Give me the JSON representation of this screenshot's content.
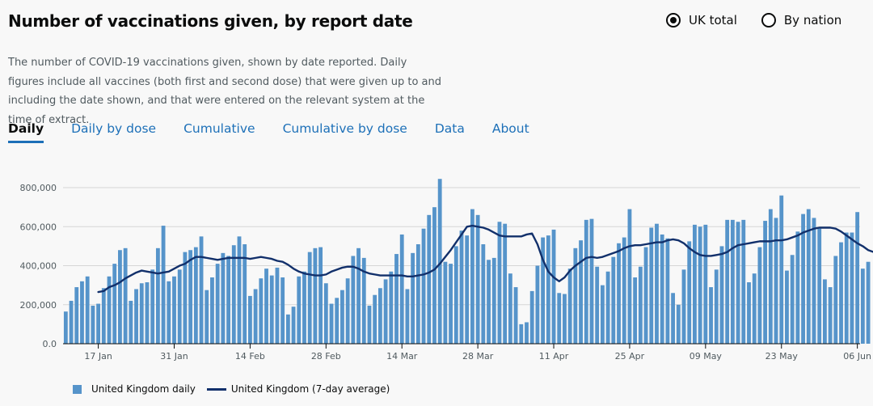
{
  "title": "Number of vaccinations given, by report date",
  "radios": [
    {
      "label": "UK total",
      "checked": true
    },
    {
      "label": "By nation",
      "checked": false
    }
  ],
  "description": "The number of COVID-19 vaccinations given, shown by date reported. Daily figures include all vaccines (both first and second dose) that were given up to and including the date shown, and that were entered on the relevant system at the time of extract.",
  "tabs": [
    {
      "label": "Daily",
      "active": true
    },
    {
      "label": "Daily by dose",
      "active": false
    },
    {
      "label": "Cumulative",
      "active": false
    },
    {
      "label": "Cumulative by dose",
      "active": false
    },
    {
      "label": "Data",
      "active": false
    },
    {
      "label": "About",
      "active": false
    }
  ],
  "colors": {
    "bar": "#5694ca",
    "line": "#12306b",
    "tab_active": "#1d70b8"
  },
  "chart_data": {
    "type": "bar",
    "x_start": "2021-01-11",
    "x_end": "2021-06-07",
    "ylim": [
      0,
      850000
    ],
    "y_ticks": [
      {
        "value": 0,
        "label": "0.0"
      },
      {
        "value": 200000,
        "label": "200,000"
      },
      {
        "value": 400000,
        "label": "400,000"
      },
      {
        "value": 600000,
        "label": "600,000"
      },
      {
        "value": 800000,
        "label": "800,000"
      }
    ],
    "x_ticks": [
      {
        "date": "2021-01-17",
        "label": "17 Jan"
      },
      {
        "date": "2021-01-31",
        "label": "31 Jan"
      },
      {
        "date": "2021-02-14",
        "label": "14 Feb"
      },
      {
        "date": "2021-02-28",
        "label": "28 Feb"
      },
      {
        "date": "2021-03-14",
        "label": "14 Mar"
      },
      {
        "date": "2021-03-28",
        "label": "28 Mar"
      },
      {
        "date": "2021-04-11",
        "label": "11 Apr"
      },
      {
        "date": "2021-04-25",
        "label": "25 Apr"
      },
      {
        "date": "2021-05-09",
        "label": "09 May"
      },
      {
        "date": "2021-05-23",
        "label": "23 May"
      },
      {
        "date": "2021-06-06",
        "label": "06 Jun"
      }
    ],
    "series": [
      {
        "name": "United Kingdom daily",
        "type": "bar",
        "values": [
          165000,
          220000,
          290000,
          320000,
          345000,
          195000,
          205000,
          285000,
          345000,
          410000,
          480000,
          490000,
          220000,
          280000,
          310000,
          315000,
          380000,
          490000,
          605000,
          320000,
          345000,
          380000,
          470000,
          480000,
          495000,
          550000,
          275000,
          340000,
          410000,
          465000,
          450000,
          505000,
          550000,
          510000,
          245000,
          280000,
          335000,
          385000,
          350000,
          390000,
          340000,
          150000,
          190000,
          345000,
          370000,
          470000,
          490000,
          495000,
          310000,
          205000,
          235000,
          275000,
          335000,
          450000,
          490000,
          440000,
          195000,
          250000,
          285000,
          330000,
          370000,
          460000,
          560000,
          280000,
          465000,
          510000,
          590000,
          660000,
          700000,
          845000,
          420000,
          410000,
          500000,
          580000,
          555000,
          690000,
          660000,
          510000,
          430000,
          440000,
          625000,
          615000,
          360000,
          290000,
          100000,
          110000,
          270000,
          400000,
          545000,
          555000,
          585000,
          260000,
          255000,
          385000,
          490000,
          530000,
          635000,
          640000,
          395000,
          300000,
          370000,
          445000,
          515000,
          545000,
          690000,
          340000,
          395000,
          495000,
          595000,
          615000,
          560000,
          540000,
          260000,
          200000,
          380000,
          525000,
          610000,
          600000,
          610000,
          290000,
          380000,
          500000,
          635000,
          635000,
          625000,
          635000,
          315000,
          360000,
          495000,
          630000,
          690000,
          645000,
          760000,
          375000,
          455000,
          575000,
          665000,
          690000,
          645000,
          590000,
          330000,
          290000,
          450000,
          520000,
          570000,
          570000,
          675000,
          385000,
          420000
        ]
      },
      {
        "name": "United Kingdom (7-day average)",
        "type": "line",
        "start_index": 6,
        "values": [
          265000,
          270000,
          290000,
          300000,
          315000,
          335000,
          350000,
          365000,
          375000,
          370000,
          365000,
          360000,
          365000,
          370000,
          385000,
          400000,
          410000,
          430000,
          445000,
          445000,
          440000,
          435000,
          430000,
          435000,
          440000,
          440000,
          440000,
          440000,
          435000,
          440000,
          445000,
          440000,
          435000,
          425000,
          420000,
          405000,
          385000,
          370000,
          360000,
          355000,
          350000,
          350000,
          355000,
          370000,
          380000,
          390000,
          395000,
          395000,
          385000,
          370000,
          360000,
          355000,
          350000,
          350000,
          350000,
          350000,
          350000,
          345000,
          345000,
          350000,
          355000,
          365000,
          380000,
          410000,
          445000,
          480000,
          520000,
          560000,
          600000,
          605000,
          600000,
          595000,
          585000,
          570000,
          555000,
          550000,
          550000,
          550000,
          550000,
          560000,
          565000,
          510000,
          430000,
          370000,
          340000,
          320000,
          340000,
          375000,
          400000,
          420000,
          440000,
          445000,
          440000,
          445000,
          455000,
          465000,
          475000,
          490000,
          500000,
          505000,
          505000,
          510000,
          515000,
          520000,
          520000,
          530000,
          535000,
          530000,
          515000,
          490000,
          470000,
          455000,
          450000,
          450000,
          455000,
          460000,
          470000,
          490000,
          505000,
          510000,
          515000,
          520000,
          525000,
          525000,
          525000,
          530000,
          530000,
          535000,
          545000,
          555000,
          570000,
          580000,
          590000,
          595000,
          595000,
          595000,
          590000,
          575000,
          555000,
          535000,
          515000,
          500000,
          480000,
          470000,
          480000,
          490000,
          510000
        ]
      }
    ],
    "legend": [
      "United Kingdom daily",
      "United Kingdom (7-day average)"
    ]
  }
}
